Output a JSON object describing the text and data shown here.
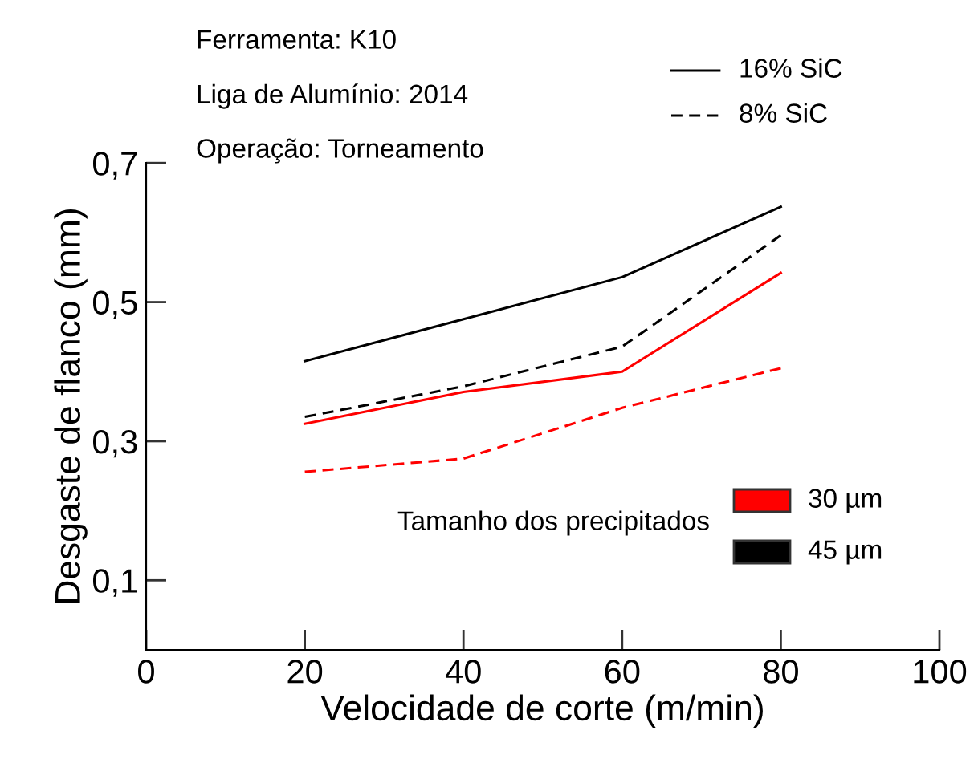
{
  "chart_data": {
    "type": "line",
    "xlabel": "Velocidade de corte (m/min)",
    "ylabel": "Desgaste de flanco (mm)",
    "x": [
      20,
      40,
      60,
      80
    ],
    "series": [
      {
        "color": "#000000",
        "line_style": "solid",
        "x": [
          20,
          60,
          80
        ],
        "values": [
          0.415,
          0.536,
          0.637
        ]
      },
      {
        "color": "#000000",
        "line_style": "dashed",
        "values": [
          0.335,
          0.379,
          0.436,
          0.596
        ]
      },
      {
        "color": "#ff0000",
        "line_style": "solid",
        "values": [
          0.325,
          0.371,
          0.4,
          0.542
        ]
      },
      {
        "color": "#ff0000",
        "line_style": "dashed",
        "values": [
          0.256,
          0.275,
          0.348,
          0.405
        ]
      }
    ],
    "xlim": [
      0,
      100
    ],
    "xticks": [
      0,
      20,
      40,
      60,
      80,
      100
    ],
    "ylim": [
      0,
      0.7
    ],
    "yticks": [
      {
        "value": 0.1,
        "label": "0,1"
      },
      {
        "value": 0.3,
        "label": "0,3"
      },
      {
        "value": 0.5,
        "label": "0,5"
      },
      {
        "value": 0.7,
        "label": "0,7"
      }
    ],
    "grid": false,
    "annotations": [
      "Ferramenta: K10",
      "Liga de Alumínio: 2014",
      "Operação: Torneamento",
      "16% SiC",
      "8% SiC",
      "30 µm",
      "45 µm",
      "Tamanho dos precipitados"
    ]
  }
}
